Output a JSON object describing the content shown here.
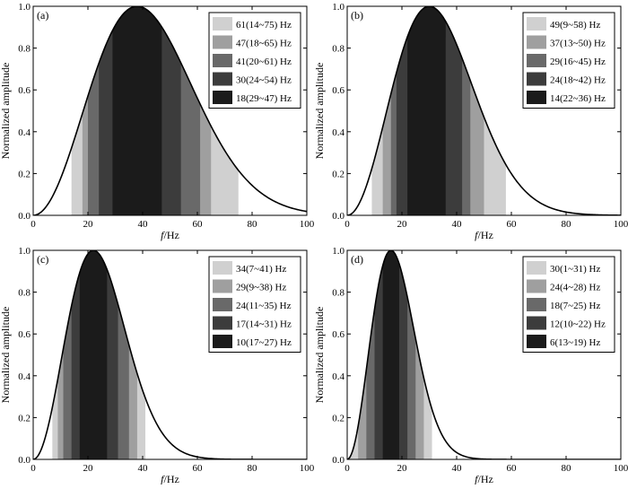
{
  "figure": {
    "y_axis_label": "Normalized amplitude",
    "x_axis_label_italic": "f",
    "x_axis_label_unit": "/Hz"
  },
  "chart_data": [
    {
      "type": "area",
      "panel_label": "(a)",
      "xlabel": "f/Hz",
      "ylabel": "Normalized amplitude",
      "xlim": [
        0,
        100
      ],
      "ylim": [
        0,
        1.0
      ],
      "x_ticks": [
        "0",
        "20",
        "40",
        "60",
        "80",
        "100"
      ],
      "y_ticks": [
        "0.0",
        "0.2",
        "0.4",
        "0.6",
        "0.8",
        "1.0"
      ],
      "grid": false,
      "legend_position": "top-right",
      "curve": {
        "peak_hz": 38,
        "peak_value": 1.0
      },
      "bands": [
        {
          "label": "61(14~75) Hz",
          "low": 14,
          "high": 75,
          "color": "#d0d0d0"
        },
        {
          "label": "47(18~65) Hz",
          "low": 18,
          "high": 65,
          "color": "#9f9f9f"
        },
        {
          "label": "41(20~61) Hz",
          "low": 20,
          "high": 61,
          "color": "#696969"
        },
        {
          "label": "30(24~54) Hz",
          "low": 24,
          "high": 54,
          "color": "#3c3c3c"
        },
        {
          "label": "18(29~47) Hz",
          "low": 29,
          "high": 47,
          "color": "#1b1b1b"
        }
      ]
    },
    {
      "type": "area",
      "panel_label": "(b)",
      "xlabel": "f/Hz",
      "ylabel": "Normalized amplitude",
      "xlim": [
        0,
        100
      ],
      "ylim": [
        0,
        1.0
      ],
      "x_ticks": [
        "0",
        "20",
        "40",
        "60",
        "80",
        "100"
      ],
      "y_ticks": [
        "0.0",
        "0.2",
        "0.4",
        "0.6",
        "0.8",
        "1.0"
      ],
      "grid": false,
      "legend_position": "top-right",
      "curve": {
        "peak_hz": 30,
        "peak_value": 1.0
      },
      "bands": [
        {
          "label": "49(9~58) Hz",
          "low": 9,
          "high": 58,
          "color": "#d0d0d0"
        },
        {
          "label": "37(13~50) Hz",
          "low": 13,
          "high": 50,
          "color": "#9f9f9f"
        },
        {
          "label": "29(16~45) Hz",
          "low": 16,
          "high": 45,
          "color": "#696969"
        },
        {
          "label": "24(18~42) Hz",
          "low": 18,
          "high": 42,
          "color": "#3c3c3c"
        },
        {
          "label": "14(22~36) Hz",
          "low": 22,
          "high": 36,
          "color": "#1b1b1b"
        }
      ]
    },
    {
      "type": "area",
      "panel_label": "(c)",
      "xlabel": "f/Hz",
      "ylabel": "Normalized amplitude",
      "xlim": [
        0,
        100
      ],
      "ylim": [
        0,
        1.0
      ],
      "x_ticks": [
        "0",
        "20",
        "40",
        "60",
        "80",
        "100"
      ],
      "y_ticks": [
        "0.0",
        "0.2",
        "0.4",
        "0.6",
        "0.8",
        "1.0"
      ],
      "grid": false,
      "legend_position": "top-right",
      "curve": {
        "peak_hz": 22,
        "peak_value": 1.0
      },
      "bands": [
        {
          "label": "34(7~41) Hz",
          "low": 7,
          "high": 41,
          "color": "#d0d0d0"
        },
        {
          "label": "29(9~38) Hz",
          "low": 9,
          "high": 38,
          "color": "#9f9f9f"
        },
        {
          "label": "24(11~35) Hz",
          "low": 11,
          "high": 35,
          "color": "#696969"
        },
        {
          "label": "17(14~31) Hz",
          "low": 14,
          "high": 31,
          "color": "#3c3c3c"
        },
        {
          "label": "10(17~27) Hz",
          "low": 17,
          "high": 27,
          "color": "#1b1b1b"
        }
      ]
    },
    {
      "type": "area",
      "panel_label": "(d)",
      "xlabel": "f/Hz",
      "ylabel": "Normalized amplitude",
      "xlim": [
        0,
        100
      ],
      "ylim": [
        0,
        1.0
      ],
      "x_ticks": [
        "0",
        "20",
        "40",
        "60",
        "80",
        "100"
      ],
      "y_ticks": [
        "0.0",
        "0.2",
        "0.4",
        "0.6",
        "0.8",
        "1.0"
      ],
      "grid": false,
      "legend_position": "top-right",
      "curve": {
        "peak_hz": 16,
        "peak_value": 1.0
      },
      "bands": [
        {
          "label": "30(1~31) Hz",
          "low": 1,
          "high": 31,
          "color": "#d0d0d0"
        },
        {
          "label": "24(4~28) Hz",
          "low": 4,
          "high": 28,
          "color": "#9f9f9f"
        },
        {
          "label": "18(7~25) Hz",
          "low": 7,
          "high": 25,
          "color": "#696969"
        },
        {
          "label": "12(10~22) Hz",
          "low": 10,
          "high": 22,
          "color": "#3c3c3c"
        },
        {
          "label": "6(13~19) Hz",
          "low": 13,
          "high": 19,
          "color": "#1b1b1b"
        }
      ]
    }
  ]
}
